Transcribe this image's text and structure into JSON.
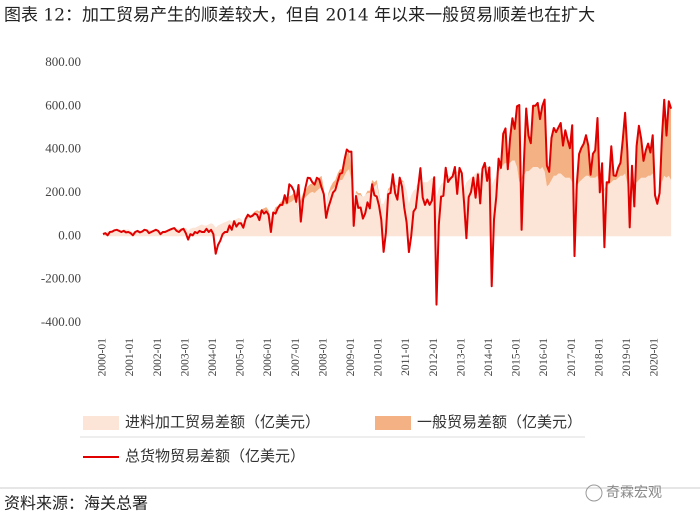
{
  "chart_data": {
    "type": "line",
    "title": "图表 12：加工贸易产生的顺差较大，但自 2014 年以来一般贸易顺差也在扩大",
    "source": "资料来源：海关总署",
    "watermark": "奇霖宏观",
    "grid": false,
    "ylim": [
      -400,
      800
    ],
    "yticks": [
      {
        "value": -400,
        "label": "-400.00"
      },
      {
        "value": -200,
        "label": "-200.00"
      },
      {
        "value": 0,
        "label": "0.00"
      },
      {
        "value": 200,
        "label": "200.00"
      },
      {
        "value": 400,
        "label": "400.00"
      },
      {
        "value": 600,
        "label": "600.00"
      },
      {
        "value": 800,
        "label": "800.00"
      }
    ],
    "categories": [
      "2000-01",
      null,
      null,
      null,
      null,
      null,
      null,
      null,
      null,
      null,
      null,
      null,
      "2001-01",
      null,
      null,
      null,
      null,
      null,
      null,
      null,
      null,
      null,
      null,
      null,
      "2002-01",
      null,
      null,
      null,
      null,
      null,
      null,
      null,
      null,
      null,
      null,
      null,
      "2003-01",
      null,
      null,
      null,
      null,
      null,
      null,
      null,
      null,
      null,
      null,
      null,
      "2004-01",
      null,
      null,
      null,
      null,
      null,
      null,
      null,
      null,
      null,
      null,
      null,
      "2005-01",
      null,
      null,
      null,
      null,
      null,
      null,
      null,
      null,
      null,
      null,
      null,
      "2006-01",
      null,
      null,
      null,
      null,
      null,
      null,
      null,
      null,
      null,
      null,
      null,
      "2007-01",
      null,
      null,
      null,
      null,
      null,
      null,
      null,
      null,
      null,
      null,
      null,
      "2008-01",
      null,
      null,
      null,
      null,
      null,
      null,
      null,
      null,
      null,
      null,
      null,
      "2009-01",
      null,
      null,
      null,
      null,
      null,
      null,
      null,
      null,
      null,
      null,
      null,
      "2010-01",
      null,
      null,
      null,
      null,
      null,
      null,
      null,
      null,
      null,
      null,
      null,
      "2011-01",
      null,
      null,
      null,
      null,
      null,
      null,
      null,
      null,
      null,
      null,
      null,
      "2012-01",
      null,
      null,
      null,
      null,
      null,
      null,
      null,
      null,
      null,
      null,
      null,
      "2013-01",
      null,
      null,
      null,
      null,
      null,
      null,
      null,
      null,
      null,
      null,
      null,
      "2014-01",
      null,
      null,
      null,
      null,
      null,
      null,
      null,
      null,
      null,
      null,
      null,
      "2015-01",
      null,
      null,
      null,
      null,
      null,
      null,
      null,
      null,
      null,
      null,
      null,
      "2016-01",
      null,
      null,
      null,
      null,
      null,
      null,
      null,
      null,
      null,
      null,
      null,
      "2017-01",
      null,
      null,
      null,
      null,
      null,
      null,
      null,
      null,
      null,
      null,
      null,
      "2018-01",
      null,
      null,
      null,
      null,
      null,
      null,
      null,
      null,
      null,
      null,
      null,
      "2019-01",
      null,
      null,
      null,
      null,
      null,
      null,
      null,
      null,
      null,
      null,
      null,
      "2020-01",
      null,
      null,
      null,
      null,
      null,
      null,
      null
    ],
    "series": [
      {
        "name": "进料加工贸易差额（亿美元）",
        "type": "area",
        "color": "#fce4d6",
        "values": [
          20,
          15,
          20,
          22,
          25,
          25,
          28,
          30,
          28,
          28,
          30,
          32,
          25,
          18,
          22,
          25,
          25,
          28,
          30,
          32,
          30,
          28,
          30,
          35,
          28,
          20,
          25,
          28,
          30,
          32,
          35,
          38,
          35,
          35,
          38,
          40,
          40,
          25,
          35,
          40,
          40,
          45,
          50,
          55,
          50,
          50,
          55,
          60,
          55,
          40,
          50,
          55,
          60,
          65,
          70,
          75,
          70,
          75,
          80,
          85,
          80,
          60,
          75,
          85,
          90,
          95,
          105,
          110,
          105,
          110,
          115,
          120,
          110,
          80,
          100,
          120,
          125,
          135,
          145,
          150,
          145,
          155,
          160,
          170,
          160,
          110,
          150,
          170,
          180,
          190,
          200,
          205,
          200,
          210,
          220,
          230,
          200,
          140,
          190,
          210,
          220,
          230,
          250,
          260,
          260,
          280,
          300,
          310,
          260,
          130,
          200,
          190,
          190,
          180,
          190,
          200,
          200,
          230,
          230,
          240,
          190,
          150,
          150,
          180,
          210,
          220,
          240,
          230,
          230,
          250,
          250,
          250,
          210,
          150,
          190,
          210,
          220,
          240,
          260,
          250,
          250,
          250,
          260,
          270,
          240,
          180,
          220,
          240,
          250,
          270,
          280,
          280,
          280,
          300,
          290,
          300,
          280,
          220,
          250,
          260,
          270,
          280,
          290,
          300,
          290,
          310,
          320,
          320,
          290,
          230,
          260,
          280,
          300,
          310,
          330,
          340,
          330,
          340,
          350,
          350,
          320,
          250,
          260,
          280,
          300,
          300,
          310,
          320,
          320,
          320,
          310,
          320,
          300,
          230,
          240,
          260,
          280,
          280,
          290,
          290,
          280,
          270,
          270,
          270,
          250,
          200,
          230,
          250,
          260,
          270,
          280,
          280,
          270,
          270,
          270,
          280,
          230,
          200,
          210,
          230,
          240,
          250,
          260,
          260,
          270,
          280,
          280,
          290,
          240,
          180,
          210,
          230,
          250,
          260,
          270,
          270,
          270,
          280,
          280,
          290,
          200,
          180,
          180,
          250,
          280,
          270,
          280,
          260
        ]
      },
      {
        "name": "一般贸易差额（亿美元）",
        "type": "area",
        "color": "#f4b183",
        "values": [
          0,
          0,
          2,
          0,
          0,
          2,
          0,
          0,
          0,
          2,
          0,
          0,
          0,
          0,
          0,
          0,
          0,
          0,
          0,
          0,
          0,
          0,
          0,
          0,
          0,
          0,
          0,
          0,
          0,
          0,
          0,
          0,
          0,
          0,
          0,
          0,
          0,
          0,
          0,
          0,
          0,
          0,
          0,
          0,
          0,
          0,
          0,
          0,
          0,
          0,
          0,
          0,
          0,
          0,
          0,
          0,
          0,
          0,
          0,
          0,
          0,
          0,
          5,
          5,
          5,
          10,
          10,
          10,
          10,
          15,
          15,
          15,
          10,
          0,
          10,
          15,
          15,
          20,
          20,
          20,
          25,
          30,
          30,
          30,
          20,
          0,
          20,
          30,
          30,
          40,
          40,
          40,
          40,
          50,
          50,
          50,
          20,
          0,
          10,
          20,
          30,
          30,
          40,
          50,
          50,
          70,
          80,
          80,
          50,
          0,
          10,
          10,
          10,
          0,
          0,
          10,
          10,
          30,
          20,
          20,
          10,
          0,
          0,
          0,
          10,
          10,
          20,
          10,
          0,
          20,
          10,
          0,
          0,
          0,
          0,
          0,
          0,
          10,
          30,
          0,
          0,
          0,
          0,
          0,
          20,
          0,
          0,
          0,
          0,
          40,
          0,
          0,
          0,
          20,
          0,
          20,
          10,
          0,
          0,
          0,
          0,
          0,
          0,
          0,
          0,
          0,
          20,
          0,
          30,
          0,
          0,
          0,
          60,
          10,
          140,
          160,
          0,
          110,
          190,
          150,
          280,
          350,
          0,
          60,
          290,
          160,
          120,
          280,
          280,
          300,
          230,
          280,
          330,
          100,
          60,
          200,
          220,
          200,
          210,
          230,
          140,
          220,
          180,
          140,
          260,
          0,
          10,
          130,
          150,
          160,
          190,
          140,
          20,
          110,
          130,
          270,
          0,
          140,
          0,
          20,
          10,
          170,
          20,
          20,
          50,
          60,
          170,
          280,
          150,
          0,
          120,
          0,
          170,
          250,
          180,
          80,
          130,
          150,
          110,
          180,
          0,
          0,
          20,
          200,
          350,
          200,
          340,
          330
        ]
      },
      {
        "name": "总货物贸易差额（亿美元）",
        "type": "line",
        "color": "#e00000",
        "values": [
          10,
          15,
          5,
          20,
          22,
          28,
          30,
          25,
          20,
          25,
          18,
          20,
          15,
          5,
          20,
          25,
          18,
          22,
          30,
          28,
          15,
          20,
          25,
          30,
          25,
          10,
          20,
          20,
          25,
          30,
          35,
          38,
          25,
          20,
          30,
          35,
          15,
          -15,
          10,
          5,
          20,
          15,
          25,
          20,
          20,
          35,
          20,
          30,
          10,
          -80,
          -40,
          -20,
          10,
          20,
          20,
          50,
          30,
          70,
          45,
          60,
          60,
          40,
          80,
          100,
          90,
          95,
          105,
          100,
          75,
          120,
          105,
          115,
          100,
          20,
          110,
          105,
          130,
          145,
          145,
          190,
          155,
          240,
          230,
          210,
          159,
          237,
          68,
          169,
          224,
          270,
          269,
          250,
          239,
          270,
          263,
          226,
          195,
          85,
          134,
          167,
          202,
          214,
          252,
          288,
          293,
          353,
          401,
          390,
          391,
          48,
          186,
          131,
          133,
          82,
          106,
          157,
          129,
          240,
          190,
          184,
          142,
          76,
          -72,
          17,
          195,
          200,
          287,
          200,
          169,
          271,
          229,
          131,
          65,
          -73,
          1,
          114,
          130,
          222,
          315,
          179,
          145,
          170,
          145,
          165,
          273,
          -315,
          53,
          184,
          187,
          317,
          251,
          266,
          276,
          320,
          196,
          316,
          292,
          153,
          -9,
          181,
          204,
          271,
          178,
          286,
          152,
          311,
          339,
          256,
          318,
          -230,
          77,
          184,
          359,
          316,
          473,
          498,
          310,
          454,
          545,
          496,
          600,
          606,
          30,
          341,
          590,
          465,
          430,
          603,
          603,
          616,
          541,
          601,
          631,
          326,
          298,
          455,
          500,
          481,
          502,
          523,
          419,
          490,
          446,
          407,
          513,
          -91,
          239,
          380,
          408,
          427,
          467,
          419,
          284,
          381,
          397,
          546,
          203,
          337,
          -50,
          250,
          249,
          416,
          281,
          279,
          317,
          340,
          447,
          570,
          391,
          41,
          326,
          138,
          417,
          510,
          450,
          348,
          397,
          428,
          387,
          467,
          190,
          150,
          200,
          453,
          630,
          465,
          623,
          589
        ]
      }
    ]
  }
}
